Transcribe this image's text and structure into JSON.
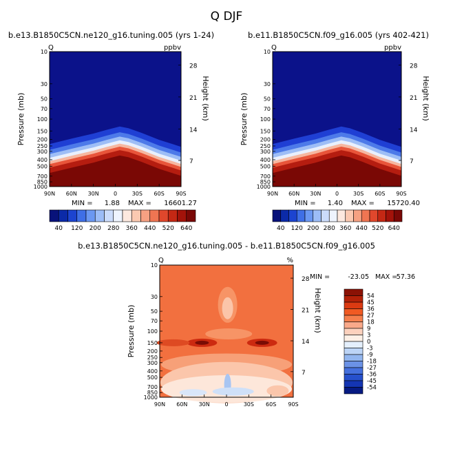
{
  "chart_data": {
    "type": "heatmap",
    "title": "Q DJF",
    "panels": [
      {
        "id": "model_a",
        "subtitle": "b.e13.B1850C5CN.ne120_g16.tuning.005 (yrs 1-24)",
        "left_tag": "Q",
        "right_tag": "ppbv",
        "ylabel": "Pressure (mb)",
        "ylabel_right": "Height (km)",
        "xticks": [
          "90N",
          "60N",
          "30N",
          "0",
          "30S",
          "60S",
          "90S"
        ],
        "yticks": [
          "10",
          "30",
          "50",
          "70",
          "100",
          "150",
          "200",
          "250",
          "300",
          "400",
          "500",
          "700",
          "850",
          "1000"
        ],
        "height_ticks": [
          "28",
          "21",
          "14",
          "7"
        ],
        "min_label": "MIN =",
        "min_value": "1.88",
        "max_label": "MAX =",
        "max_value": "16601.27"
      },
      {
        "id": "model_b",
        "subtitle": "b.e11.B1850C5CN.f09_g16.005 (yrs 402-421)",
        "left_tag": "Q",
        "right_tag": "ppbv",
        "ylabel": "Pressure (mb)",
        "ylabel_right": "Height (km)",
        "xticks": [
          "90N",
          "60N",
          "30N",
          "0",
          "30S",
          "60S",
          "90S"
        ],
        "yticks": [
          "10",
          "30",
          "50",
          "70",
          "100",
          "150",
          "200",
          "250",
          "300",
          "400",
          "500",
          "700",
          "850",
          "1000"
        ],
        "height_ticks": [
          "28",
          "21",
          "14",
          "7"
        ],
        "min_label": "MIN =",
        "min_value": "1.40",
        "max_label": "MAX =",
        "max_value": "15720.40"
      },
      {
        "id": "difference",
        "subtitle": "b.e13.B1850C5CN.ne120_g16.tuning.005 - b.e11.B1850C5CN.f09_g16.005",
        "left_tag": "Q",
        "right_tag": "%",
        "ylabel": "Pressure (mb)",
        "ylabel_right": "Height (km)",
        "xticks": [
          "90N",
          "60N",
          "30N",
          "0",
          "30S",
          "60S",
          "90S"
        ],
        "yticks": [
          "10",
          "30",
          "50",
          "70",
          "100",
          "150",
          "200",
          "250",
          "300",
          "400",
          "500",
          "700",
          "850",
          "1000"
        ],
        "height_ticks": [
          "28",
          "21",
          "14",
          "7"
        ],
        "min_label": "MIN =",
        "min_value": "-23.05",
        "max_label": "MAX =",
        "max_value": "57.36"
      }
    ],
    "colorbar_top": {
      "labels": [
        "40",
        "120",
        "200",
        "280",
        "360",
        "440",
        "520",
        "640"
      ],
      "colors": [
        "#08127a",
        "#0b2aa8",
        "#1c44d0",
        "#3f6fe6",
        "#6b98f2",
        "#9cbdf7",
        "#cbdcfb",
        "#eef4fe",
        "#fde9df",
        "#fbc9b1",
        "#f6a182",
        "#ef7552",
        "#e0472c",
        "#c42814",
        "#a3130a",
        "#7a0806"
      ]
    },
    "colorbar_diff": {
      "labels": [
        "54",
        "45",
        "36",
        "27",
        "18",
        "9",
        "3",
        "0",
        "-3",
        "-9",
        "-18",
        "-27",
        "-36",
        "-45",
        "-54"
      ],
      "colors": [
        "#8b1205",
        "#b32108",
        "#db3a12",
        "#f05a23",
        "#f57f4d",
        "#f9a98a",
        "#fcd1bd",
        "#fdf0e6",
        "#e4effc",
        "#bcd4f6",
        "#93b6ef",
        "#6b92e6",
        "#4570dd",
        "#2650cc",
        "#1435b3",
        "#061a82"
      ]
    }
  }
}
